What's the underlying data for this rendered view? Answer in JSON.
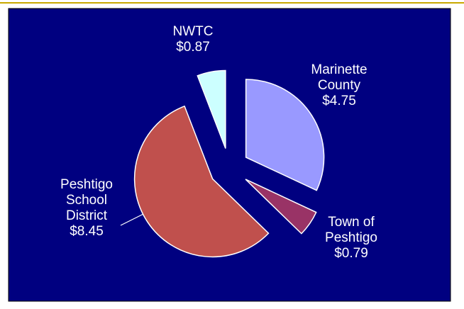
{
  "chart_data": {
    "type": "pie",
    "categories": [
      "Marinette County",
      "Town of Peshtigo",
      "Peshtigo School District",
      "NWTC"
    ],
    "values": [
      4.75,
      0.79,
      8.45,
      0.87
    ],
    "value_labels": [
      "$4.75",
      "$0.79",
      "$8.45",
      "$0.87"
    ],
    "colors": [
      "#9999ff",
      "#993366",
      "#c0504d",
      "#ccffff"
    ],
    "background": "#000080"
  }
}
